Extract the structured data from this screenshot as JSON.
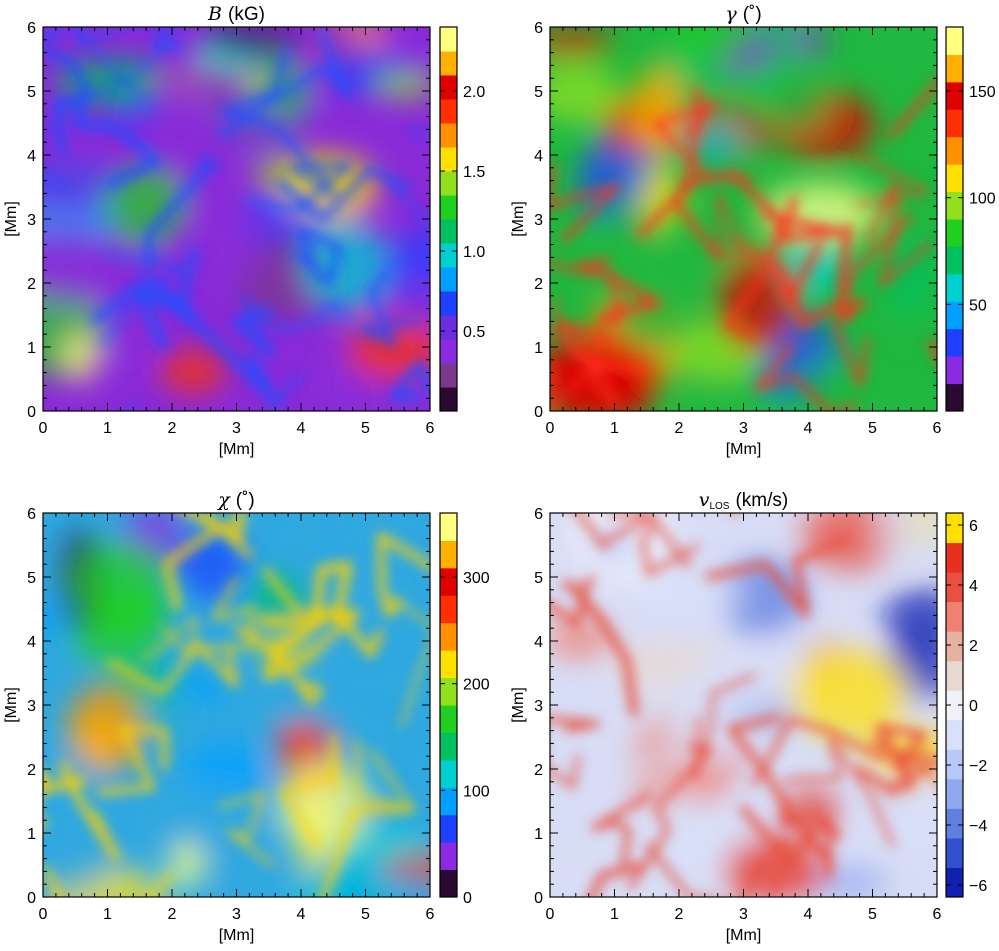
{
  "figure": {
    "common": {
      "x_label": "[Mm]",
      "y_label": "[Mm]",
      "x_ticks": [
        "0",
        "1",
        "2",
        "3",
        "4",
        "5",
        "6"
      ],
      "y_ticks": [
        "0",
        "1",
        "2",
        "3",
        "4",
        "5",
        "6"
      ]
    }
  },
  "chart_data": [
    {
      "type": "heatmap",
      "panel": "top-left",
      "title_symbol": "B",
      "title_unit": "(kG)",
      "xlabel": "[Mm]",
      "ylabel": "[Mm]",
      "xlim": [
        0,
        6
      ],
      "ylim": [
        0,
        6
      ],
      "colorbar": {
        "range": [
          0,
          2.4
        ],
        "ticks": [
          0.5,
          1.0,
          1.5,
          2.0
        ],
        "tick_labels": [
          "0.5",
          "1.0",
          "1.5",
          "2.0"
        ],
        "colormap": [
          "#2a0a30",
          "#7a3a8a",
          "#8a2be2",
          "#6a2ee0",
          "#2040ff",
          "#00a0ff",
          "#00d0d0",
          "#00c060",
          "#20d020",
          "#90e020",
          "#ffe000",
          "#ff9000",
          "#ff3000",
          "#e00000",
          "#ffb000",
          "#ffff80"
        ]
      },
      "background_color": "#8a2bd8",
      "feature_color": "#2050ff"
    },
    {
      "type": "heatmap",
      "panel": "top-right",
      "title_symbol": "γ",
      "title_unit": "(˚)",
      "xlabel": "[Mm]",
      "ylabel": "[Mm]",
      "xlim": [
        0,
        6
      ],
      "ylim": [
        0,
        6
      ],
      "colorbar": {
        "range": [
          0,
          180
        ],
        "ticks": [
          50,
          100,
          150
        ],
        "tick_labels": [
          "50",
          "100",
          "150"
        ],
        "colormap": [
          "#2a0a30",
          "#8a2be2",
          "#2040ff",
          "#00a0ff",
          "#00d0d0",
          "#00c060",
          "#20d020",
          "#90e020",
          "#ffe000",
          "#ff9000",
          "#ff3000",
          "#e00000",
          "#ffb000",
          "#ffff80"
        ]
      },
      "background_color": "#20b840",
      "feature_color": "#ff3020"
    },
    {
      "type": "heatmap",
      "panel": "bottom-left",
      "title_symbol": "χ",
      "title_unit": "(˚)",
      "xlabel": "[Mm]",
      "ylabel": "[Mm]",
      "xlim": [
        0,
        6
      ],
      "ylim": [
        0,
        6
      ],
      "colorbar": {
        "range": [
          0,
          360
        ],
        "ticks": [
          0,
          100,
          200,
          300
        ],
        "tick_labels": [
          "0",
          "100",
          "200",
          "300"
        ],
        "colormap": [
          "#2a0a30",
          "#8a2be2",
          "#2040ff",
          "#00a0ff",
          "#00d0d0",
          "#00c060",
          "#20d020",
          "#90e020",
          "#ffe000",
          "#ff9000",
          "#ff3000",
          "#e00000",
          "#ffb000",
          "#ffff80"
        ]
      },
      "background_color": "#30a8e0",
      "feature_color": "#ffd000"
    },
    {
      "type": "heatmap",
      "panel": "bottom-right",
      "title_symbol": "v",
      "title_subscript": "LOS",
      "title_unit": "(km/s)",
      "xlabel": "[Mm]",
      "ylabel": "[Mm]",
      "xlim": [
        0,
        6
      ],
      "ylim": [
        0,
        6
      ],
      "colorbar": {
        "range": [
          -6.4,
          6.4
        ],
        "ticks": [
          -6,
          -4,
          -2,
          0,
          2,
          4,
          6
        ],
        "tick_labels": [
          "−6",
          "−4",
          "−2",
          "0",
          "2",
          "4",
          "6"
        ],
        "colormap": [
          "#1020b0",
          "#3050d0",
          "#6080e0",
          "#90a8f0",
          "#b8c8f8",
          "#d8e0fa",
          "#f0f0fa",
          "#e8d8d0",
          "#e8b0a0",
          "#f08070",
          "#e85040",
          "#e83020",
          "#ffe000"
        ]
      },
      "background_color": "#d8ddf6",
      "feature_color": "#e84c3c"
    }
  ]
}
